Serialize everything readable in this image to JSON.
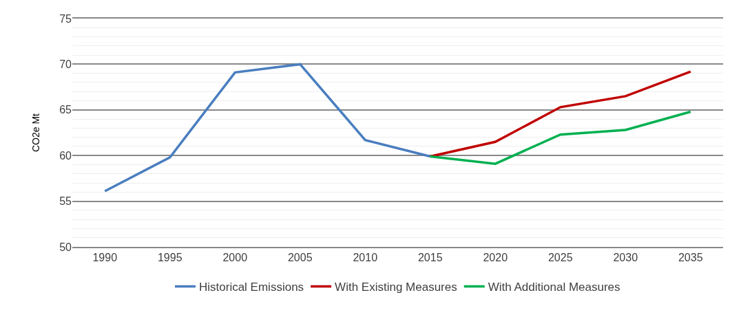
{
  "chart_data": {
    "type": "line",
    "ylabel": "CO2e Mt",
    "categories": [
      "1990",
      "1995",
      "2000",
      "2005",
      "2010",
      "2015",
      "2020",
      "2025",
      "2030",
      "2035"
    ],
    "series": [
      {
        "name": "Historical Emissions",
        "color": "#4a7ebf",
        "values": [
          56.1,
          59.8,
          69.1,
          70.0,
          61.7,
          59.9,
          null,
          null,
          null,
          null
        ]
      },
      {
        "name": "With Existing Measures",
        "color": "#c00000",
        "values": [
          null,
          null,
          null,
          null,
          null,
          59.9,
          61.5,
          65.3,
          66.5,
          69.2
        ]
      },
      {
        "name": "With Additional Measures",
        "color": "#00b050",
        "values": [
          null,
          null,
          null,
          null,
          null,
          59.9,
          59.1,
          62.3,
          62.8,
          64.8
        ]
      }
    ],
    "ylim": [
      50,
      75
    ],
    "yticks": [
      50,
      55,
      60,
      65,
      70,
      75
    ],
    "grid": "y",
    "legend": "bottom",
    "marker": "none",
    "line_style": "solid"
  }
}
